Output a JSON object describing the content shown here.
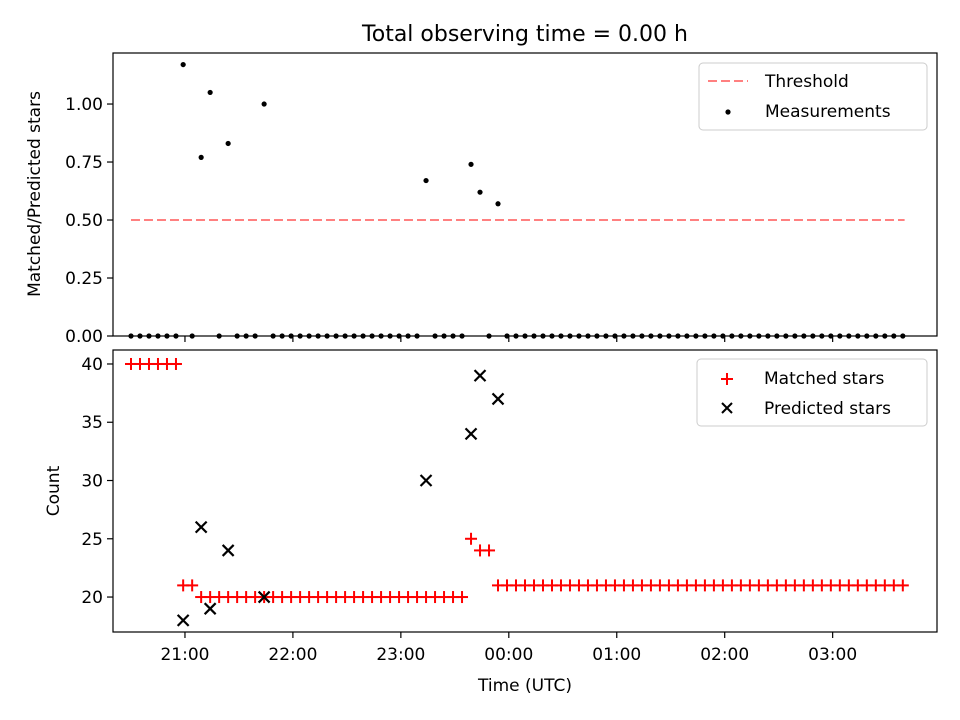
{
  "title": "Total observing time = 0.00 h",
  "chart_data": [
    {
      "type": "scatter",
      "ylabel": "Matched/Predicted stars",
      "xlim": [
        "20:20",
        "03:58"
      ],
      "ylim": [
        0,
        1.22
      ],
      "yticks": [
        0.0,
        0.25,
        0.5,
        0.75,
        1.0
      ],
      "ytick_labels": [
        "0.00",
        "0.25",
        "0.50",
        "0.75",
        "1.00"
      ],
      "legend": {
        "position": "top-right",
        "threshold_label": "Threshold",
        "measurements_label": "Measurements"
      },
      "threshold": {
        "value": 0.5,
        "x_range": [
          "20:30",
          "03:40"
        ],
        "color": "#ff8080"
      },
      "measurements": {
        "color": "#000000",
        "points": [
          {
            "x": "20:30",
            "y": 0.0
          },
          {
            "x": "20:35",
            "y": 0.0
          },
          {
            "x": "20:40",
            "y": 0.0
          },
          {
            "x": "20:45",
            "y": 0.0
          },
          {
            "x": "20:50",
            "y": 0.0
          },
          {
            "x": "20:55",
            "y": 0.0
          },
          {
            "x": "20:59",
            "y": 1.17
          },
          {
            "x": "21:04",
            "y": 0.0
          },
          {
            "x": "21:09",
            "y": 0.77
          },
          {
            "x": "21:14",
            "y": 1.05
          },
          {
            "x": "21:19",
            "y": 0.0
          },
          {
            "x": "21:24",
            "y": 0.83
          },
          {
            "x": "21:29",
            "y": 0.0
          },
          {
            "x": "21:34",
            "y": 0.0
          },
          {
            "x": "21:39",
            "y": 0.0
          },
          {
            "x": "21:44",
            "y": 1.0
          },
          {
            "x": "21:49",
            "y": 0.0
          },
          {
            "x": "21:54",
            "y": 0.0
          },
          {
            "x": "21:59",
            "y": 0.0
          },
          {
            "x": "22:04",
            "y": 0.0
          },
          {
            "x": "22:09",
            "y": 0.0
          },
          {
            "x": "22:14",
            "y": 0.0
          },
          {
            "x": "22:19",
            "y": 0.0
          },
          {
            "x": "22:24",
            "y": 0.0
          },
          {
            "x": "22:29",
            "y": 0.0
          },
          {
            "x": "22:34",
            "y": 0.0
          },
          {
            "x": "22:39",
            "y": 0.0
          },
          {
            "x": "22:44",
            "y": 0.0
          },
          {
            "x": "22:49",
            "y": 0.0
          },
          {
            "x": "22:54",
            "y": 0.0
          },
          {
            "x": "22:59",
            "y": 0.0
          },
          {
            "x": "23:04",
            "y": 0.0
          },
          {
            "x": "23:09",
            "y": 0.0
          },
          {
            "x": "23:14",
            "y": 0.67
          },
          {
            "x": "23:19",
            "y": 0.0
          },
          {
            "x": "23:24",
            "y": 0.0
          },
          {
            "x": "23:29",
            "y": 0.0
          },
          {
            "x": "23:34",
            "y": 0.0
          },
          {
            "x": "23:39",
            "y": 0.74
          },
          {
            "x": "23:44",
            "y": 0.62
          },
          {
            "x": "23:49",
            "y": 0.0
          },
          {
            "x": "23:54",
            "y": 0.57
          },
          {
            "x": "23:59",
            "y": 0.0
          },
          {
            "x": "00:04",
            "y": 0.0
          },
          {
            "x": "00:09",
            "y": 0.0
          },
          {
            "x": "00:14",
            "y": 0.0
          },
          {
            "x": "00:19",
            "y": 0.0
          },
          {
            "x": "00:24",
            "y": 0.0
          },
          {
            "x": "00:29",
            "y": 0.0
          },
          {
            "x": "00:34",
            "y": 0.0
          },
          {
            "x": "00:39",
            "y": 0.0
          },
          {
            "x": "00:44",
            "y": 0.0
          },
          {
            "x": "00:49",
            "y": 0.0
          },
          {
            "x": "00:54",
            "y": 0.0
          },
          {
            "x": "00:59",
            "y": 0.0
          },
          {
            "x": "01:04",
            "y": 0.0
          },
          {
            "x": "01:09",
            "y": 0.0
          },
          {
            "x": "01:14",
            "y": 0.0
          },
          {
            "x": "01:19",
            "y": 0.0
          },
          {
            "x": "01:24",
            "y": 0.0
          },
          {
            "x": "01:29",
            "y": 0.0
          },
          {
            "x": "01:34",
            "y": 0.0
          },
          {
            "x": "01:39",
            "y": 0.0
          },
          {
            "x": "01:44",
            "y": 0.0
          },
          {
            "x": "01:49",
            "y": 0.0
          },
          {
            "x": "01:54",
            "y": 0.0
          },
          {
            "x": "01:59",
            "y": 0.0
          },
          {
            "x": "02:04",
            "y": 0.0
          },
          {
            "x": "02:09",
            "y": 0.0
          },
          {
            "x": "02:14",
            "y": 0.0
          },
          {
            "x": "02:19",
            "y": 0.0
          },
          {
            "x": "02:24",
            "y": 0.0
          },
          {
            "x": "02:29",
            "y": 0.0
          },
          {
            "x": "02:34",
            "y": 0.0
          },
          {
            "x": "02:39",
            "y": 0.0
          },
          {
            "x": "02:44",
            "y": 0.0
          },
          {
            "x": "02:49",
            "y": 0.0
          },
          {
            "x": "02:54",
            "y": 0.0
          },
          {
            "x": "02:59",
            "y": 0.0
          },
          {
            "x": "03:04",
            "y": 0.0
          },
          {
            "x": "03:09",
            "y": 0.0
          },
          {
            "x": "03:14",
            "y": 0.0
          },
          {
            "x": "03:19",
            "y": 0.0
          },
          {
            "x": "03:24",
            "y": 0.0
          },
          {
            "x": "03:29",
            "y": 0.0
          },
          {
            "x": "03:34",
            "y": 0.0
          },
          {
            "x": "03:39",
            "y": 0.0
          }
        ]
      }
    },
    {
      "type": "scatter",
      "xlabel": "Time (UTC)",
      "ylabel": "Count",
      "xlim": [
        "20:20",
        "03:58"
      ],
      "xticks": [
        "21:00",
        "22:00",
        "23:00",
        "00:00",
        "01:00",
        "02:00",
        "03:00"
      ],
      "ylim": [
        17,
        41.2
      ],
      "yticks": [
        20,
        25,
        30,
        35,
        40
      ],
      "legend": {
        "position": "top-right"
      },
      "series": [
        {
          "name": "Matched stars",
          "marker": "plus",
          "color": "#ff0000",
          "points": [
            {
              "x": "20:30",
              "y": 40
            },
            {
              "x": "20:35",
              "y": 40
            },
            {
              "x": "20:40",
              "y": 40
            },
            {
              "x": "20:45",
              "y": 40
            },
            {
              "x": "20:50",
              "y": 40
            },
            {
              "x": "20:55",
              "y": 40
            },
            {
              "x": "20:59",
              "y": 21
            },
            {
              "x": "21:04",
              "y": 21
            },
            {
              "x": "21:09",
              "y": 20
            },
            {
              "x": "21:14",
              "y": 20
            },
            {
              "x": "21:19",
              "y": 20
            },
            {
              "x": "21:24",
              "y": 20
            },
            {
              "x": "21:29",
              "y": 20
            },
            {
              "x": "21:34",
              "y": 20
            },
            {
              "x": "21:39",
              "y": 20
            },
            {
              "x": "21:44",
              "y": 20
            },
            {
              "x": "21:49",
              "y": 20
            },
            {
              "x": "21:54",
              "y": 20
            },
            {
              "x": "21:59",
              "y": 20
            },
            {
              "x": "22:04",
              "y": 20
            },
            {
              "x": "22:09",
              "y": 20
            },
            {
              "x": "22:14",
              "y": 20
            },
            {
              "x": "22:19",
              "y": 20
            },
            {
              "x": "22:24",
              "y": 20
            },
            {
              "x": "22:29",
              "y": 20
            },
            {
              "x": "22:34",
              "y": 20
            },
            {
              "x": "22:39",
              "y": 20
            },
            {
              "x": "22:44",
              "y": 20
            },
            {
              "x": "22:49",
              "y": 20
            },
            {
              "x": "22:54",
              "y": 20
            },
            {
              "x": "22:59",
              "y": 20
            },
            {
              "x": "23:04",
              "y": 20
            },
            {
              "x": "23:09",
              "y": 20
            },
            {
              "x": "23:14",
              "y": 20
            },
            {
              "x": "23:19",
              "y": 20
            },
            {
              "x": "23:24",
              "y": 20
            },
            {
              "x": "23:29",
              "y": 20
            },
            {
              "x": "23:34",
              "y": 20
            },
            {
              "x": "23:39",
              "y": 25
            },
            {
              "x": "23:44",
              "y": 24
            },
            {
              "x": "23:49",
              "y": 24
            },
            {
              "x": "23:54",
              "y": 21
            },
            {
              "x": "23:59",
              "y": 21
            },
            {
              "x": "00:04",
              "y": 21
            },
            {
              "x": "00:09",
              "y": 21
            },
            {
              "x": "00:14",
              "y": 21
            },
            {
              "x": "00:19",
              "y": 21
            },
            {
              "x": "00:24",
              "y": 21
            },
            {
              "x": "00:29",
              "y": 21
            },
            {
              "x": "00:34",
              "y": 21
            },
            {
              "x": "00:39",
              "y": 21
            },
            {
              "x": "00:44",
              "y": 21
            },
            {
              "x": "00:49",
              "y": 21
            },
            {
              "x": "00:54",
              "y": 21
            },
            {
              "x": "00:59",
              "y": 21
            },
            {
              "x": "01:04",
              "y": 21
            },
            {
              "x": "01:09",
              "y": 21
            },
            {
              "x": "01:14",
              "y": 21
            },
            {
              "x": "01:19",
              "y": 21
            },
            {
              "x": "01:24",
              "y": 21
            },
            {
              "x": "01:29",
              "y": 21
            },
            {
              "x": "01:34",
              "y": 21
            },
            {
              "x": "01:39",
              "y": 21
            },
            {
              "x": "01:44",
              "y": 21
            },
            {
              "x": "01:49",
              "y": 21
            },
            {
              "x": "01:54",
              "y": 21
            },
            {
              "x": "01:59",
              "y": 21
            },
            {
              "x": "02:04",
              "y": 21
            },
            {
              "x": "02:09",
              "y": 21
            },
            {
              "x": "02:14",
              "y": 21
            },
            {
              "x": "02:19",
              "y": 21
            },
            {
              "x": "02:24",
              "y": 21
            },
            {
              "x": "02:29",
              "y": 21
            },
            {
              "x": "02:34",
              "y": 21
            },
            {
              "x": "02:39",
              "y": 21
            },
            {
              "x": "02:44",
              "y": 21
            },
            {
              "x": "02:49",
              "y": 21
            },
            {
              "x": "02:54",
              "y": 21
            },
            {
              "x": "02:59",
              "y": 21
            },
            {
              "x": "03:04",
              "y": 21
            },
            {
              "x": "03:09",
              "y": 21
            },
            {
              "x": "03:14",
              "y": 21
            },
            {
              "x": "03:19",
              "y": 21
            },
            {
              "x": "03:24",
              "y": 21
            },
            {
              "x": "03:29",
              "y": 21
            },
            {
              "x": "03:34",
              "y": 21
            },
            {
              "x": "03:39",
              "y": 21
            }
          ]
        },
        {
          "name": "Predicted stars",
          "marker": "x",
          "color": "#000000",
          "points": [
            {
              "x": "20:59",
              "y": 18
            },
            {
              "x": "21:09",
              "y": 26
            },
            {
              "x": "21:14",
              "y": 19
            },
            {
              "x": "21:24",
              "y": 24
            },
            {
              "x": "21:44",
              "y": 20
            },
            {
              "x": "23:14",
              "y": 30
            },
            {
              "x": "23:39",
              "y": 34
            },
            {
              "x": "23:44",
              "y": 39
            },
            {
              "x": "23:54",
              "y": 37
            }
          ]
        }
      ]
    }
  ]
}
